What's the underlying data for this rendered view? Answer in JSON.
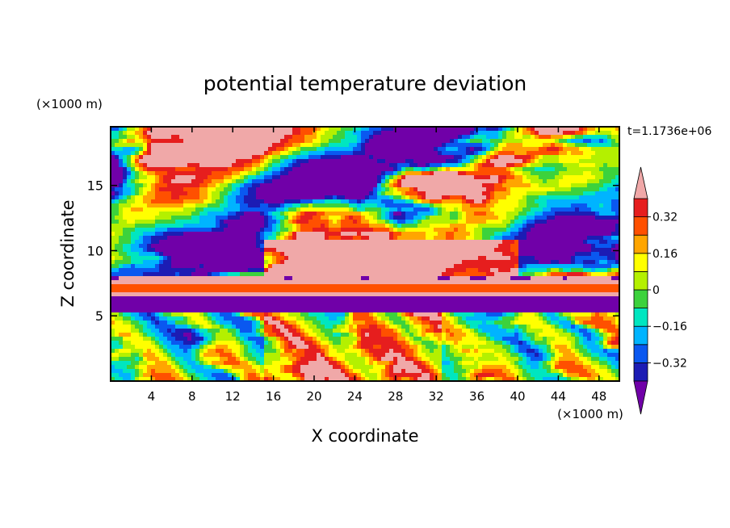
{
  "chart_data": {
    "type": "heatmap",
    "title": "potential temperature deviation",
    "xlabel": "X coordinate",
    "ylabel": "Z coordinate",
    "x_unit": "(×1000 m)",
    "y_unit": "(×1000 m)",
    "time_label": "t=1.1736e+06",
    "xlim": [
      0,
      50
    ],
    "ylim": [
      0,
      19.5
    ],
    "xticks": [
      "4",
      "8",
      "12",
      "16",
      "20",
      "24",
      "28",
      "32",
      "36",
      "40",
      "44",
      "48"
    ],
    "xtick_values": [
      4,
      8,
      12,
      16,
      20,
      24,
      28,
      32,
      36,
      40,
      44,
      48
    ],
    "yticks": [
      "5",
      "10",
      "15"
    ],
    "ytick_values": [
      5,
      10,
      15
    ],
    "colorbar": {
      "levels": [
        -0.4,
        -0.32,
        -0.24,
        -0.16,
        -0.08,
        0,
        0.08,
        0.16,
        0.24,
        0.32,
        0.4
      ],
      "labels": [
        "0.32",
        "0.16",
        "0",
        "−0.16",
        "−0.32"
      ],
      "label_values": [
        0.32,
        0.16,
        0,
        -0.16,
        -0.32
      ],
      "colors": [
        "#7000a8",
        "#1c1cb4",
        "#0a58f0",
        "#00b4ff",
        "#00e6c0",
        "#3cd23c",
        "#b4f000",
        "#ffff00",
        "#ffa500",
        "#ff5000",
        "#e61e1e",
        "#f0a8a8"
      ]
    }
  }
}
